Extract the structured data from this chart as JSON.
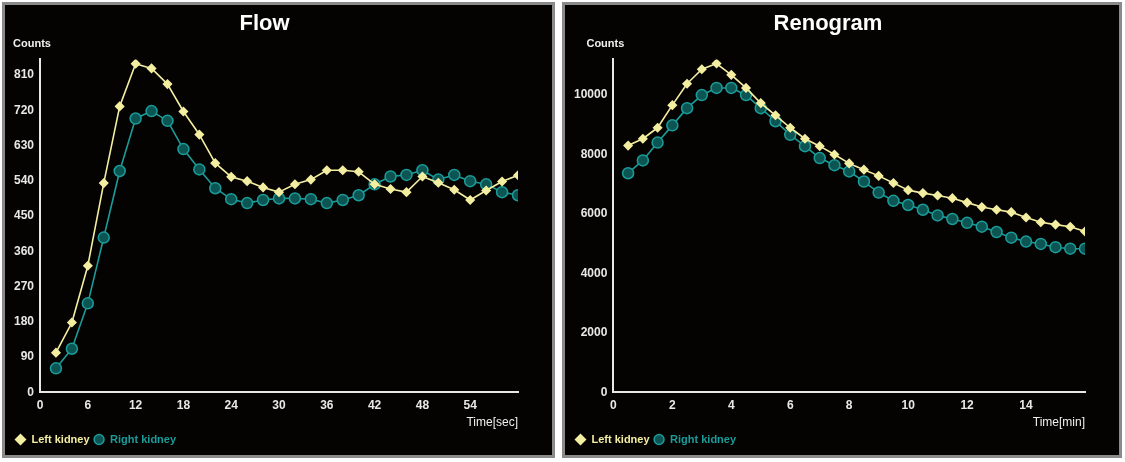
{
  "chart_data": [
    {
      "type": "line",
      "title": "Flow",
      "xlabel": "Time[sec]",
      "ylabel": "Counts",
      "x": [
        2,
        4,
        6,
        8,
        10,
        12,
        14,
        16,
        18,
        20,
        22,
        24,
        26,
        28,
        30,
        32,
        34,
        36,
        38,
        40,
        42,
        44,
        46,
        48,
        50,
        52,
        54,
        56,
        58,
        60
      ],
      "series": [
        {
          "name": "Left kidney",
          "color": "#f3eea0",
          "marker": "diamond",
          "values": [
            101,
            178,
            323,
            534,
            730,
            839,
            827,
            787,
            717,
            658,
            585,
            550,
            539,
            523,
            511,
            531,
            543,
            567,
            567,
            563,
            531,
            519,
            511,
            551,
            535,
            517,
            491,
            515,
            538,
            554
          ]
        },
        {
          "name": "Right kidney",
          "color": "#1a9c9a",
          "marker": "circle",
          "values": [
            61,
            111,
            227,
            395,
            565,
            699,
            718,
            693,
            621,
            569,
            521,
            493,
            483,
            491,
            495,
            495,
            493,
            483,
            491,
            503,
            531,
            551,
            555,
            567,
            543,
            555,
            539,
            531,
            511,
            503
          ]
        }
      ],
      "xlim": [
        0,
        60
      ],
      "xticks": [
        0,
        6,
        12,
        18,
        24,
        30,
        36,
        42,
        48,
        54
      ],
      "ylim": [
        0,
        850
      ],
      "yticks": [
        0,
        90,
        180,
        270,
        360,
        450,
        540,
        630,
        720,
        810
      ],
      "grid": false,
      "legend": "bottom left",
      "line_style": "solid"
    },
    {
      "type": "line",
      "title": "Renogram",
      "xlabel": "Time[min]",
      "ylabel": "Counts",
      "x": [
        0.5,
        1,
        1.5,
        2,
        2.5,
        3,
        3.5,
        4,
        4.5,
        5,
        5.5,
        6,
        6.5,
        7,
        7.5,
        8,
        8.5,
        9,
        9.5,
        10,
        10.5,
        11,
        11.5,
        12,
        12.5,
        13,
        13.5,
        14,
        14.5,
        15,
        15.5,
        16
      ],
      "series": [
        {
          "name": "Left kidney",
          "color": "#f3eea0",
          "marker": "diamond",
          "values": [
            8300,
            8530,
            8900,
            9660,
            10380,
            10870,
            11060,
            10680,
            10240,
            9730,
            9320,
            8900,
            8530,
            8280,
            8000,
            7700,
            7490,
            7280,
            7040,
            6800,
            6700,
            6620,
            6530,
            6380,
            6230,
            6140,
            6060,
            5880,
            5720,
            5640,
            5570,
            5410
          ]
        },
        {
          "name": "Right kidney",
          "color": "#1a9c9a",
          "marker": "circle",
          "values": [
            7370,
            7800,
            8400,
            8980,
            9560,
            10000,
            10240,
            10240,
            10000,
            9560,
            9120,
            8660,
            8280,
            7880,
            7640,
            7430,
            7090,
            6720,
            6440,
            6300,
            6140,
            5950,
            5830,
            5700,
            5570,
            5390,
            5200,
            5070,
            4990,
            4880,
            4830,
            4830
          ]
        }
      ],
      "xlim": [
        0,
        16
      ],
      "xticks": [
        0,
        2,
        4,
        6,
        8,
        10,
        12,
        14
      ],
      "ylim": [
        0,
        11200
      ],
      "yticks": [
        0,
        2000,
        4000,
        6000,
        8000,
        10000
      ],
      "grid": false,
      "legend": "bottom left",
      "line_style": "solid"
    }
  ]
}
